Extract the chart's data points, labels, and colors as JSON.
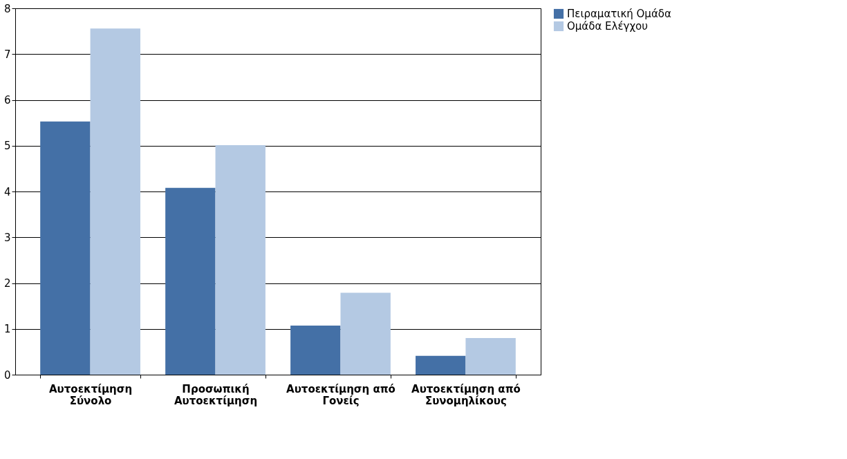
{
  "chart_data": {
    "type": "bar",
    "categories": [
      "Αυτοεκτίμηση Σύνολο",
      "Προσωπική Αυτοεκτίμηση",
      "Αυτοεκτίμηση από Γονείς",
      "Αυτοεκτίμηση από Συνομηλίκους"
    ],
    "series": [
      {
        "name": "Πειραματική Ομάδα",
        "color": "#4470a6",
        "values": [
          5.53,
          4.08,
          1.07,
          0.41
        ]
      },
      {
        "name": "Ομάδα Ελέγχου",
        "color": "#b4c9e3",
        "values": [
          7.56,
          5.01,
          1.79,
          0.8
        ]
      }
    ],
    "ylim": [
      0,
      8
    ],
    "yticks": [
      0,
      1,
      2,
      3,
      4,
      5,
      6,
      7,
      8
    ],
    "grid": "y",
    "legend": "right"
  }
}
